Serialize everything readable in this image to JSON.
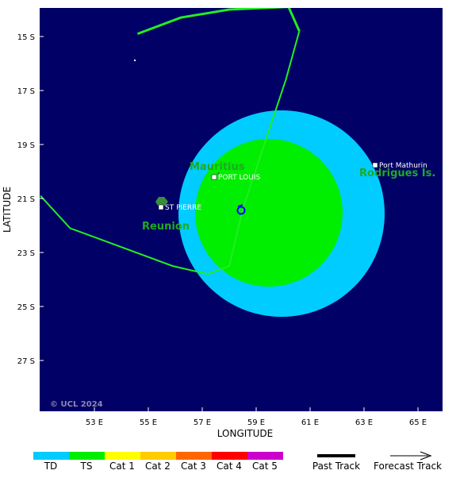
{
  "map": {
    "xlabel": "LONGITUDE",
    "ylabel": "LATITUDE",
    "copyright": "© UCL 2024",
    "colors": {
      "ocean": "#000066",
      "track": "#22ee22",
      "wind_34kt": "#00ccff",
      "wind_50kt": "#00ee00",
      "land": "#3c8c3c"
    },
    "x_ticks": [
      "53 E",
      "55 E",
      "57 E",
      "59 E",
      "61 E",
      "63 E",
      "65 E"
    ],
    "y_ticks": [
      "15 S",
      "17 S",
      "19 S",
      "21 S",
      "23 S",
      "25 S",
      "27 S"
    ],
    "places": {
      "mauritius": "Mauritius",
      "port_louis": "PORT LOUIS",
      "reunion": "Reunion",
      "st_pierre": "ST PIERRE",
      "rodrigues": "Rodrigues Is.",
      "port_mathurin": "Port Mathurin"
    },
    "storm_center": {
      "lon": 58.5,
      "lat": -21.4
    },
    "past_track_main": [
      [
        60.6,
        -14.8
      ],
      [
        60.2,
        -13.9
      ],
      [
        58.0,
        -14.0
      ],
      [
        56.2,
        -14.3
      ],
      [
        54.6,
        -14.9
      ]
    ],
    "past_track_main_south": [
      [
        60.6,
        -14.8
      ],
      [
        60.1,
        -16.6
      ],
      [
        59.2,
        -19.3
      ],
      [
        58.5,
        -21.4
      ],
      [
        58.0,
        -23.5
      ]
    ],
    "past_track_west": [
      [
        58.0,
        -23.5
      ],
      [
        57.2,
        -23.8
      ],
      [
        55.9,
        -23.5
      ],
      [
        52.1,
        -22.1
      ],
      [
        51.0,
        -20.9
      ]
    ]
  },
  "legend": {
    "categories": [
      {
        "label": "TD",
        "color": "#00ccff"
      },
      {
        "label": "TS",
        "color": "#00ee00"
      },
      {
        "label": "Cat 1",
        "color": "#ffff00"
      },
      {
        "label": "Cat 2",
        "color": "#ffcc00"
      },
      {
        "label": "Cat 3",
        "color": "#ff6600"
      },
      {
        "label": "Cat 4",
        "color": "#ff0000"
      },
      {
        "label": "Cat 5",
        "color": "#cc00cc"
      }
    ],
    "past_track": "Past Track",
    "forecast_track": "Forecast Track"
  }
}
